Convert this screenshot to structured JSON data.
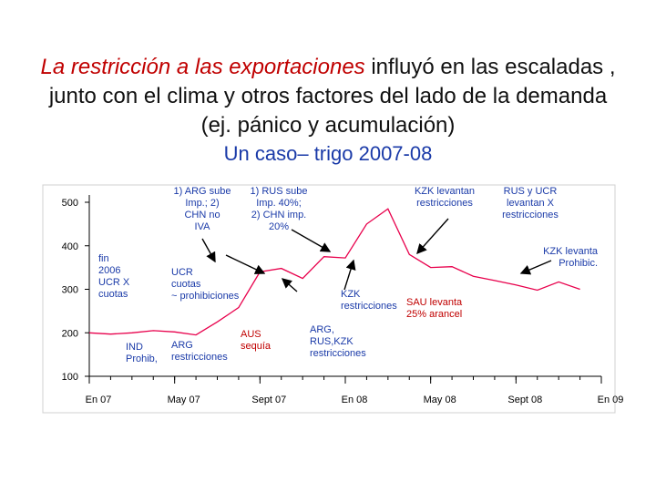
{
  "title": {
    "highlight": "La restricción a las exportaciones",
    "rest": " influyó en las escaladas , junto con el clima y otros factores del lado de la demanda (ej. pánico y acumulación)"
  },
  "subtitle": "Un caso– trigo 2007-08",
  "colors": {
    "line": "#e8004c",
    "axis": "#000000",
    "subtitle": "#1a3aa8",
    "title_highlight": "#c00000",
    "red_text": "#c00000",
    "blue_text": "#1a3aa8"
  },
  "chart_data": {
    "type": "line",
    "title": "Un caso– trigo 2007-08",
    "xlabel": "",
    "ylabel": "",
    "ylim": [
      100,
      500
    ],
    "yticks": [
      "100",
      "200",
      "300",
      "400",
      "500"
    ],
    "xticks": [
      "En 07",
      "May 07",
      "Sept 07",
      "En 08",
      "May 08",
      "Sept 08",
      "En 09"
    ],
    "xrange": [
      0,
      24
    ],
    "series": [
      {
        "name": "trigo",
        "x": [
          0,
          1,
          2,
          3,
          4,
          5,
          6,
          7,
          8,
          9,
          10,
          11,
          12,
          13,
          14,
          15,
          16,
          17,
          18,
          19,
          20,
          21,
          22,
          23
        ],
        "values": [
          200,
          197,
          200,
          205,
          202,
          195,
          225,
          258,
          340,
          348,
          325,
          375,
          372,
          450,
          485,
          380,
          350,
          352,
          330,
          320,
          310,
          298,
          317,
          300
        ]
      }
    ]
  },
  "annotations": [
    {
      "id": "arg-sube",
      "text": "1) ARG sube\nImp.; 2)\nCHN no\nIVA",
      "color": "blue"
    },
    {
      "id": "rus-sube",
      "text": "1) RUS sube\nImp. 40%;\n2) CHN imp.\n20%",
      "color": "blue"
    },
    {
      "id": "kzk-levantan",
      "text": "KZK levantan\nrestricciones",
      "color": "blue"
    },
    {
      "id": "rus-ucr",
      "text": "RUS y UCR\nlevantan X\nrestricciones",
      "color": "blue"
    },
    {
      "id": "kzk-levanta-prohib",
      "text": "KZK levanta\nProhibic.",
      "color": "blue"
    },
    {
      "id": "fin-ucr",
      "text": "fin\n2006\nUCR X\ncuotas",
      "color": "blue"
    },
    {
      "id": "ucr-cuotas",
      "text": "UCR\ncuotas\n~ prohibiciones",
      "color": "blue"
    },
    {
      "id": "kzk-restricciones",
      "text": "KZK\nrestricciones",
      "color": "blue"
    },
    {
      "id": "sau-levanta",
      "text": "SAU levanta\n25% arancel",
      "color": "red"
    },
    {
      "id": "ind-prohib",
      "text": "IND\nProhib,",
      "color": "blue"
    },
    {
      "id": "arg-restricciones",
      "text": "ARG\nrestricciones",
      "color": "blue"
    },
    {
      "id": "aus-sequia",
      "text": "AUS\nsequía",
      "color": "red"
    },
    {
      "id": "arg-rus-kzk",
      "text": "ARG,\nRUS,KZK\nrestricciones",
      "color": "blue"
    }
  ]
}
